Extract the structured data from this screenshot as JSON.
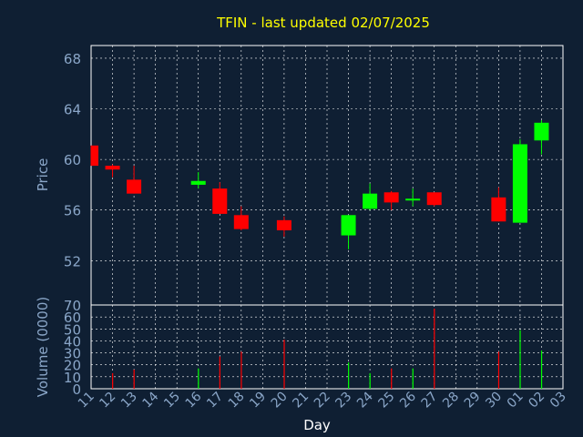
{
  "chart_data": {
    "type": "candlestick",
    "title": "TFIN - last updated 02/07/2025",
    "colors": {
      "background": "#0f1f33",
      "title": "#ffff00",
      "axis_text": "#8aa6c8",
      "up": "#00ff00",
      "down": "#ff0000",
      "grid": "#ffffff"
    },
    "grid": true,
    "price_panel": {
      "ylabel": "Price",
      "ylim": [
        48.5,
        69.0
      ],
      "yticks": [
        52,
        56,
        60,
        64,
        68
      ]
    },
    "volume_panel": {
      "ylabel": "Volume (0000)",
      "ylim": [
        0,
        70
      ],
      "yticks": [
        0,
        10,
        20,
        30,
        40,
        50,
        60,
        70
      ]
    },
    "xlabel": "Day",
    "x_tick_labels": [
      "11",
      "12",
      "13",
      "14",
      "15",
      "16",
      "17",
      "18",
      "19",
      "20",
      "21",
      "22",
      "23",
      "24",
      "25",
      "26",
      "27",
      "28",
      "29",
      "30",
      "01",
      "02",
      "03"
    ],
    "candles": [
      {
        "day": "11",
        "open": 61.1,
        "close": 59.5,
        "high": 61.1,
        "low": 59.5,
        "volume": 0
      },
      {
        "day": "12",
        "open": 59.5,
        "close": 59.2,
        "high": 59.6,
        "low": 58.6,
        "volume": 13
      },
      {
        "day": "13",
        "open": 58.4,
        "close": 57.3,
        "high": 59.5,
        "low": 57.3,
        "volume": 16
      },
      {
        "day": "16",
        "open": 58.0,
        "close": 58.3,
        "high": 59.0,
        "low": 57.7,
        "volume": 17
      },
      {
        "day": "17",
        "open": 57.7,
        "close": 55.7,
        "high": 58.2,
        "low": 55.7,
        "volume": 27
      },
      {
        "day": "18",
        "open": 55.6,
        "close": 54.5,
        "high": 56.3,
        "low": 54.4,
        "volume": 31
      },
      {
        "day": "20",
        "open": 55.2,
        "close": 54.4,
        "high": 55.5,
        "low": 53.9,
        "volume": 41
      },
      {
        "day": "23",
        "open": 54.0,
        "close": 55.6,
        "high": 55.6,
        "low": 52.9,
        "volume": 22
      },
      {
        "day": "24",
        "open": 56.1,
        "close": 57.3,
        "high": 58.1,
        "low": 56.0,
        "volume": 13
      },
      {
        "day": "25",
        "open": 57.4,
        "close": 56.6,
        "high": 57.5,
        "low": 56.0,
        "volume": 17
      },
      {
        "day": "26",
        "open": 56.8,
        "close": 56.9,
        "high": 57.7,
        "low": 56.3,
        "volume": 17
      },
      {
        "day": "27",
        "open": 57.4,
        "close": 56.4,
        "high": 57.4,
        "low": 56.3,
        "volume": 67
      },
      {
        "day": "30",
        "open": 57.0,
        "close": 55.1,
        "high": 57.8,
        "low": 55.1,
        "volume": 31
      },
      {
        "day": "01",
        "open": 55.0,
        "close": 61.2,
        "high": 61.6,
        "low": 55.0,
        "volume": 49
      },
      {
        "day": "02",
        "open": 61.5,
        "close": 62.9,
        "high": 63.1,
        "low": 60.4,
        "volume": 32
      }
    ]
  }
}
